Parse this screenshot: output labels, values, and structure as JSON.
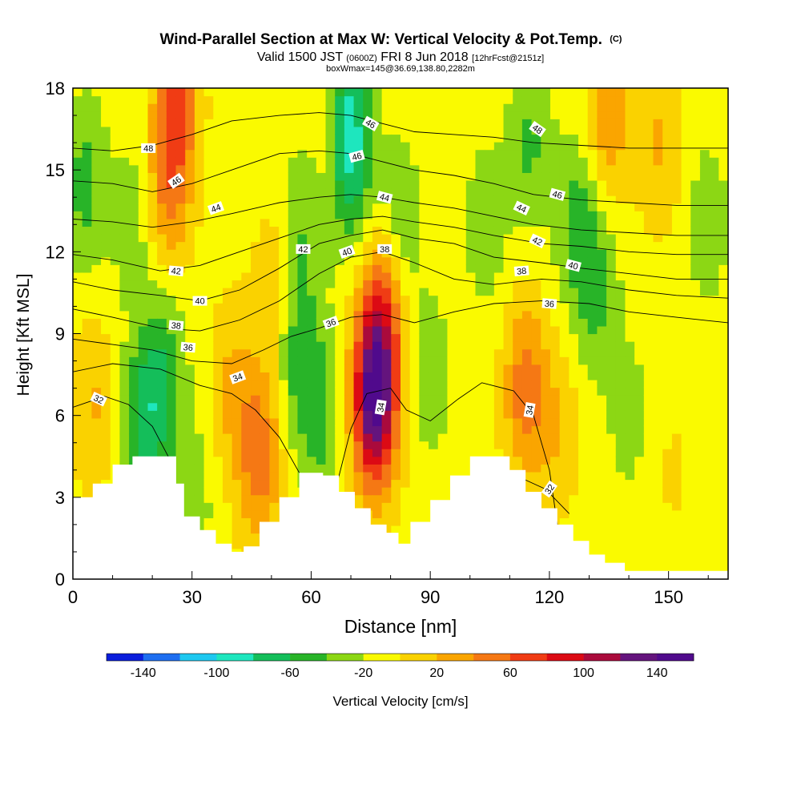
{
  "chart_data": {
    "type": "heatmap",
    "title": "Wind-Parallel Section at Max W: Vertical Velocity & Pot.Temp.",
    "title_mark": "(C)",
    "subtitle_valid": "Valid 1500 JST",
    "subtitle_utc": "(0600Z)",
    "subtitle_date": "FRI 8 Jun 2018",
    "subtitle_fcst": "[12hrFcst@2151z]",
    "subtitle_box": "boxWmax=145@36.69,138.80,2282m",
    "xlabel": "Distance [nm]",
    "ylabel": "Height [Kft MSL]",
    "xlim": [
      0,
      165
    ],
    "ylim": [
      0,
      18
    ],
    "x_ticks": [
      "0",
      "30",
      "60",
      "90",
      "120",
      "150"
    ],
    "y_ticks": [
      "0",
      "3",
      "6",
      "9",
      "12",
      "15",
      "18"
    ],
    "colorbar": {
      "label": "Vertical Velocity [cm/s]",
      "tick_labels": [
        "-140",
        "-100",
        "-60",
        "-20",
        "20",
        "60",
        "100",
        "140"
      ],
      "bins": [
        -160,
        -140,
        -120,
        -100,
        -80,
        -60,
        -40,
        -20,
        0,
        20,
        40,
        60,
        80,
        100,
        120,
        140,
        160
      ],
      "colors": [
        "#0a1edc",
        "#1e6ef0",
        "#1ec8f0",
        "#1ee6be",
        "#14be5a",
        "#28b428",
        "#8cd714",
        "#fafa00",
        "#fad200",
        "#faa500",
        "#f57814",
        "#f03c14",
        "#dc0a14",
        "#aa0a3c",
        "#64147d",
        "#500a8c"
      ]
    },
    "terrain_kft": [
      [
        0,
        3.0
      ],
      [
        5,
        3.5
      ],
      [
        10,
        4.2
      ],
      [
        15,
        4.5
      ],
      [
        22,
        4.5
      ],
      [
        26,
        3.5
      ],
      [
        28,
        2.3
      ],
      [
        32,
        1.8
      ],
      [
        36,
        1.3
      ],
      [
        40,
        1.0
      ],
      [
        43,
        1.2
      ],
      [
        47,
        2.1
      ],
      [
        52,
        3.0
      ],
      [
        57,
        3.9
      ],
      [
        63,
        3.8
      ],
      [
        67,
        3.2
      ],
      [
        71,
        2.6
      ],
      [
        75,
        2.0
      ],
      [
        79,
        1.7
      ],
      [
        82,
        1.3
      ],
      [
        85,
        2.1
      ],
      [
        90,
        2.9
      ],
      [
        95,
        3.8
      ],
      [
        100,
        4.5
      ],
      [
        105,
        4.5
      ],
      [
        110,
        4.0
      ],
      [
        114,
        3.2
      ],
      [
        118,
        2.6
      ],
      [
        122,
        2.0
      ],
      [
        126,
        1.4
      ],
      [
        130,
        0.9
      ],
      [
        134,
        0.6
      ],
      [
        139,
        0.3
      ],
      [
        165,
        0.3
      ]
    ],
    "w_centers": [
      {
        "x": 76,
        "y": 6.5,
        "w": 150
      },
      {
        "x": 78,
        "y": 9.8,
        "w": 70
      },
      {
        "x": 5,
        "y": 6.5,
        "w": 30
      },
      {
        "x": 26,
        "y": 17.5,
        "w": 70
      },
      {
        "x": 24,
        "y": 14.0,
        "w": 45
      },
      {
        "x": 40,
        "y": 7.0,
        "w": 30
      },
      {
        "x": 47,
        "y": 4.5,
        "w": 60
      },
      {
        "x": 51,
        "y": 10.5,
        "w": 25
      },
      {
        "x": 64,
        "y": 16.0,
        "w": 30
      },
      {
        "x": 114,
        "y": 7.0,
        "w": 60
      },
      {
        "x": 122,
        "y": 5.5,
        "w": 25
      },
      {
        "x": 135,
        "y": 17.0,
        "w": 45
      },
      {
        "x": 148,
        "y": 16.0,
        "w": 30
      },
      {
        "x": 151,
        "y": 4.0,
        "w": 10
      },
      {
        "x": 18,
        "y": 5.5,
        "w": -60
      },
      {
        "x": 23,
        "y": 8.0,
        "w": -40
      },
      {
        "x": 3,
        "y": 14.5,
        "w": -40
      },
      {
        "x": 15,
        "y": 13.0,
        "w": -25
      },
      {
        "x": 59,
        "y": 13.5,
        "w": -35
      },
      {
        "x": 56,
        "y": 8.5,
        "w": -40
      },
      {
        "x": 62,
        "y": 6.0,
        "w": -40
      },
      {
        "x": 69,
        "y": 17.0,
        "w": -60
      },
      {
        "x": 70,
        "y": 15.0,
        "w": -45
      },
      {
        "x": 82,
        "y": 13.0,
        "w": -35
      },
      {
        "x": 90,
        "y": 7.5,
        "w": -25
      },
      {
        "x": 104,
        "y": 13.0,
        "w": -25
      },
      {
        "x": 115,
        "y": 16.0,
        "w": -35
      },
      {
        "x": 127,
        "y": 13.0,
        "w": -40
      },
      {
        "x": 132,
        "y": 10.5,
        "w": -35
      },
      {
        "x": 160,
        "y": 13.0,
        "w": -25
      },
      {
        "x": 30,
        "y": 3.0,
        "w": -25
      },
      {
        "x": 140,
        "y": 6.0,
        "w": -20
      }
    ],
    "theta_contours": [
      {
        "label": "32",
        "pts": [
          [
            0,
            6.3
          ],
          [
            8,
            6.7
          ],
          [
            14,
            6.4
          ],
          [
            20,
            5.6
          ],
          [
            24,
            4.5
          ]
        ]
      },
      {
        "label": "32",
        "pts": [
          [
            108,
            4.0
          ],
          [
            113,
            3.7
          ],
          [
            119,
            3.3
          ],
          [
            125,
            2.4
          ]
        ]
      },
      {
        "label": "34",
        "pts": [
          [
            0,
            7.6
          ],
          [
            10,
            7.9
          ],
          [
            22,
            7.7
          ],
          [
            32,
            7.1
          ],
          [
            40,
            6.8
          ],
          [
            46,
            6.2
          ],
          [
            52,
            5.2
          ],
          [
            57,
            3.9
          ]
        ]
      },
      {
        "label": "34",
        "pts": [
          [
            66,
            3.2
          ],
          [
            70,
            5.5
          ],
          [
            74,
            6.8
          ],
          [
            80,
            7.0
          ],
          [
            84,
            6.2
          ],
          [
            90,
            5.8
          ],
          [
            97,
            6.6
          ],
          [
            103,
            7.2
          ],
          [
            111,
            6.9
          ],
          [
            116,
            6.0
          ],
          [
            120,
            4.0
          ],
          [
            122,
            2.0
          ]
        ]
      },
      {
        "label": "36",
        "pts": [
          [
            0,
            8.8
          ],
          [
            10,
            8.6
          ],
          [
            20,
            8.4
          ],
          [
            30,
            8.0
          ],
          [
            40,
            7.9
          ],
          [
            48,
            8.4
          ],
          [
            55,
            8.9
          ],
          [
            62,
            9.2
          ],
          [
            70,
            9.6
          ],
          [
            78,
            9.7
          ],
          [
            86,
            9.4
          ],
          [
            96,
            9.8
          ],
          [
            106,
            10.1
          ],
          [
            118,
            10.2
          ],
          [
            130,
            10.1
          ],
          [
            140,
            9.8
          ],
          [
            152,
            9.6
          ],
          [
            165,
            9.4
          ]
        ]
      },
      {
        "label": "38",
        "pts": [
          [
            0,
            9.9
          ],
          [
            10,
            9.6
          ],
          [
            22,
            9.2
          ],
          [
            32,
            9.1
          ],
          [
            42,
            9.5
          ],
          [
            52,
            10.2
          ],
          [
            62,
            11.2
          ],
          [
            70,
            11.8
          ],
          [
            78,
            12.0
          ],
          [
            86,
            11.6
          ],
          [
            96,
            11.0
          ],
          [
            106,
            10.8
          ],
          [
            118,
            11.0
          ],
          [
            128,
            10.9
          ],
          [
            140,
            10.6
          ],
          [
            152,
            10.4
          ],
          [
            165,
            10.3
          ]
        ]
      },
      {
        "label": "40",
        "pts": [
          [
            0,
            10.9
          ],
          [
            10,
            10.6
          ],
          [
            22,
            10.4
          ],
          [
            32,
            10.2
          ],
          [
            42,
            10.6
          ],
          [
            52,
            11.4
          ],
          [
            62,
            12.3
          ],
          [
            70,
            12.6
          ],
          [
            78,
            12.8
          ],
          [
            86,
            12.5
          ],
          [
            96,
            12.3
          ],
          [
            106,
            11.8
          ],
          [
            118,
            11.6
          ],
          [
            128,
            11.4
          ],
          [
            140,
            11.2
          ],
          [
            152,
            11.0
          ],
          [
            165,
            11.0
          ]
        ]
      },
      {
        "label": "42",
        "pts": [
          [
            0,
            11.9
          ],
          [
            10,
            11.7
          ],
          [
            22,
            11.3
          ],
          [
            32,
            11.5
          ],
          [
            42,
            12.0
          ],
          [
            52,
            12.5
          ],
          [
            62,
            13.0
          ],
          [
            70,
            13.2
          ],
          [
            78,
            13.3
          ],
          [
            86,
            13.1
          ],
          [
            96,
            12.9
          ],
          [
            106,
            12.6
          ],
          [
            118,
            12.3
          ],
          [
            128,
            12.2
          ],
          [
            140,
            12.0
          ],
          [
            152,
            11.9
          ],
          [
            165,
            11.9
          ]
        ]
      },
      {
        "label": "44",
        "pts": [
          [
            0,
            13.2
          ],
          [
            10,
            13.1
          ],
          [
            20,
            12.9
          ],
          [
            30,
            13.1
          ],
          [
            40,
            13.4
          ],
          [
            52,
            13.8
          ],
          [
            62,
            14.0
          ],
          [
            70,
            14.1
          ],
          [
            78,
            14.0
          ],
          [
            86,
            13.8
          ],
          [
            96,
            13.6
          ],
          [
            106,
            13.3
          ],
          [
            116,
            13.0
          ],
          [
            128,
            12.8
          ],
          [
            140,
            12.7
          ],
          [
            152,
            12.6
          ],
          [
            165,
            12.6
          ]
        ]
      },
      {
        "label": "46",
        "pts": [
          [
            0,
            14.6
          ],
          [
            10,
            14.5
          ],
          [
            20,
            14.2
          ],
          [
            30,
            14.5
          ],
          [
            40,
            15.0
          ],
          [
            52,
            15.6
          ],
          [
            62,
            15.7
          ],
          [
            70,
            15.6
          ],
          [
            78,
            15.3
          ],
          [
            86,
            15.0
          ],
          [
            96,
            14.8
          ],
          [
            106,
            14.5
          ],
          [
            116,
            14.1
          ],
          [
            128,
            13.9
          ],
          [
            140,
            13.8
          ],
          [
            152,
            13.7
          ],
          [
            165,
            13.7
          ]
        ]
      },
      {
        "label": "48",
        "pts": [
          [
            0,
            15.8
          ],
          [
            10,
            15.7
          ],
          [
            20,
            15.9
          ],
          [
            30,
            16.3
          ],
          [
            40,
            16.8
          ],
          [
            52,
            17.0
          ],
          [
            62,
            17.1
          ],
          [
            70,
            17.0
          ],
          [
            78,
            16.7
          ],
          [
            86,
            16.4
          ],
          [
            96,
            16.3
          ],
          [
            106,
            16.2
          ],
          [
            116,
            16.0
          ],
          [
            128,
            15.9
          ],
          [
            140,
            15.8
          ],
          [
            152,
            15.8
          ],
          [
            165,
            15.8
          ]
        ]
      }
    ],
    "contour_label_marks": [
      {
        "label": "32",
        "x": 6.5,
        "y": 6.6,
        "angle": 25
      },
      {
        "label": "32",
        "x": 120,
        "y": 3.3,
        "angle": -55
      },
      {
        "label": "34",
        "x": 41.5,
        "y": 7.4,
        "angle": -20
      },
      {
        "label": "34",
        "x": 77.5,
        "y": 6.3,
        "angle": -80
      },
      {
        "label": "34",
        "x": 115,
        "y": 6.2,
        "angle": -80
      },
      {
        "label": "36",
        "x": 29,
        "y": 8.5,
        "angle": 5
      },
      {
        "label": "36",
        "x": 65,
        "y": 9.4,
        "angle": -20
      },
      {
        "label": "36",
        "x": 120,
        "y": 10.1,
        "angle": 5
      },
      {
        "label": "38",
        "x": 26,
        "y": 9.3,
        "angle": 5
      },
      {
        "label": "38",
        "x": 78.5,
        "y": 12.1,
        "angle": 0
      },
      {
        "label": "38",
        "x": 113,
        "y": 11.3,
        "angle": -5
      },
      {
        "label": "40",
        "x": 32,
        "y": 10.2,
        "angle": 0
      },
      {
        "label": "40",
        "x": 69,
        "y": 12.0,
        "angle": -20
      },
      {
        "label": "40",
        "x": 126,
        "y": 11.5,
        "angle": 15
      },
      {
        "label": "42",
        "x": 26,
        "y": 11.3,
        "angle": 5
      },
      {
        "label": "42",
        "x": 58,
        "y": 12.1,
        "angle": 0
      },
      {
        "label": "42",
        "x": 117,
        "y": 12.4,
        "angle": 25
      },
      {
        "label": "44",
        "x": 36,
        "y": 13.6,
        "angle": -20
      },
      {
        "label": "44",
        "x": 78.5,
        "y": 14.0,
        "angle": 15
      },
      {
        "label": "44",
        "x": 113,
        "y": 13.6,
        "angle": 25
      },
      {
        "label": "46",
        "x": 26,
        "y": 14.6,
        "angle": -35
      },
      {
        "label": "46",
        "x": 71.5,
        "y": 15.5,
        "angle": -15
      },
      {
        "label": "46",
        "x": 122,
        "y": 14.1,
        "angle": 15
      },
      {
        "label": "46",
        "x": 75,
        "y": 16.7,
        "angle": 30
      },
      {
        "label": "48",
        "x": 19,
        "y": 15.8,
        "angle": 0
      },
      {
        "label": "48",
        "x": 117,
        "y": 16.5,
        "angle": 35
      }
    ]
  }
}
